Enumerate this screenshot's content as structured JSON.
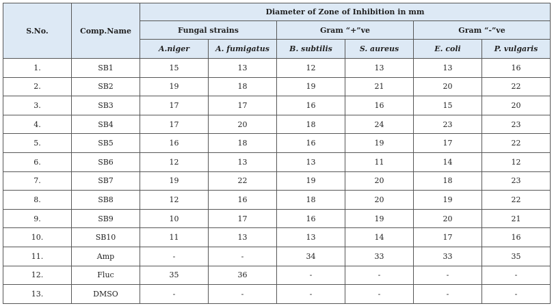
{
  "table": {
    "header": {
      "sno": "S.No.",
      "comp": "Comp.Name",
      "group": "Diameter of Zone of Inhibition in mm",
      "subgroups": [
        "Fungal strains",
        "Gram “+”ve",
        "Gram “-”ve"
      ],
      "strains": [
        "A.niger",
        "A. fumigatus",
        "B. subtilis",
        "S. aureus",
        "E. coli",
        "P. vulgaris"
      ]
    },
    "rows": [
      [
        "1.",
        "SB1",
        15,
        13,
        12,
        13,
        13,
        16
      ],
      [
        "2.",
        "SB2",
        19,
        18,
        19,
        21,
        20,
        22
      ],
      [
        "3.",
        "SB3",
        17,
        17,
        16,
        16,
        15,
        20
      ],
      [
        "4.",
        "SB4",
        17,
        20,
        18,
        24,
        23,
        23
      ],
      [
        "5.",
        "SB5",
        16,
        18,
        16,
        19,
        17,
        22
      ],
      [
        "6.",
        "SB6",
        12,
        13,
        13,
        11,
        14,
        12
      ],
      [
        "7.",
        "SB7",
        19,
        22,
        19,
        20,
        18,
        23
      ],
      [
        "8.",
        "SB8",
        12,
        16,
        18,
        20,
        19,
        22
      ],
      [
        "9.",
        "SB9",
        10,
        17,
        16,
        19,
        20,
        21
      ],
      [
        "10.",
        "SB10",
        11,
        13,
        13,
        14,
        17,
        16
      ],
      [
        "11.",
        "Amp",
        "-",
        "-",
        34,
        33,
        33,
        35
      ],
      [
        "12.",
        "Fluc",
        35,
        36,
        "-",
        "-",
        "-",
        "-"
      ],
      [
        "13.",
        "DMSO",
        "-",
        "-",
        "-",
        "-",
        "-",
        "-"
      ]
    ]
  }
}
